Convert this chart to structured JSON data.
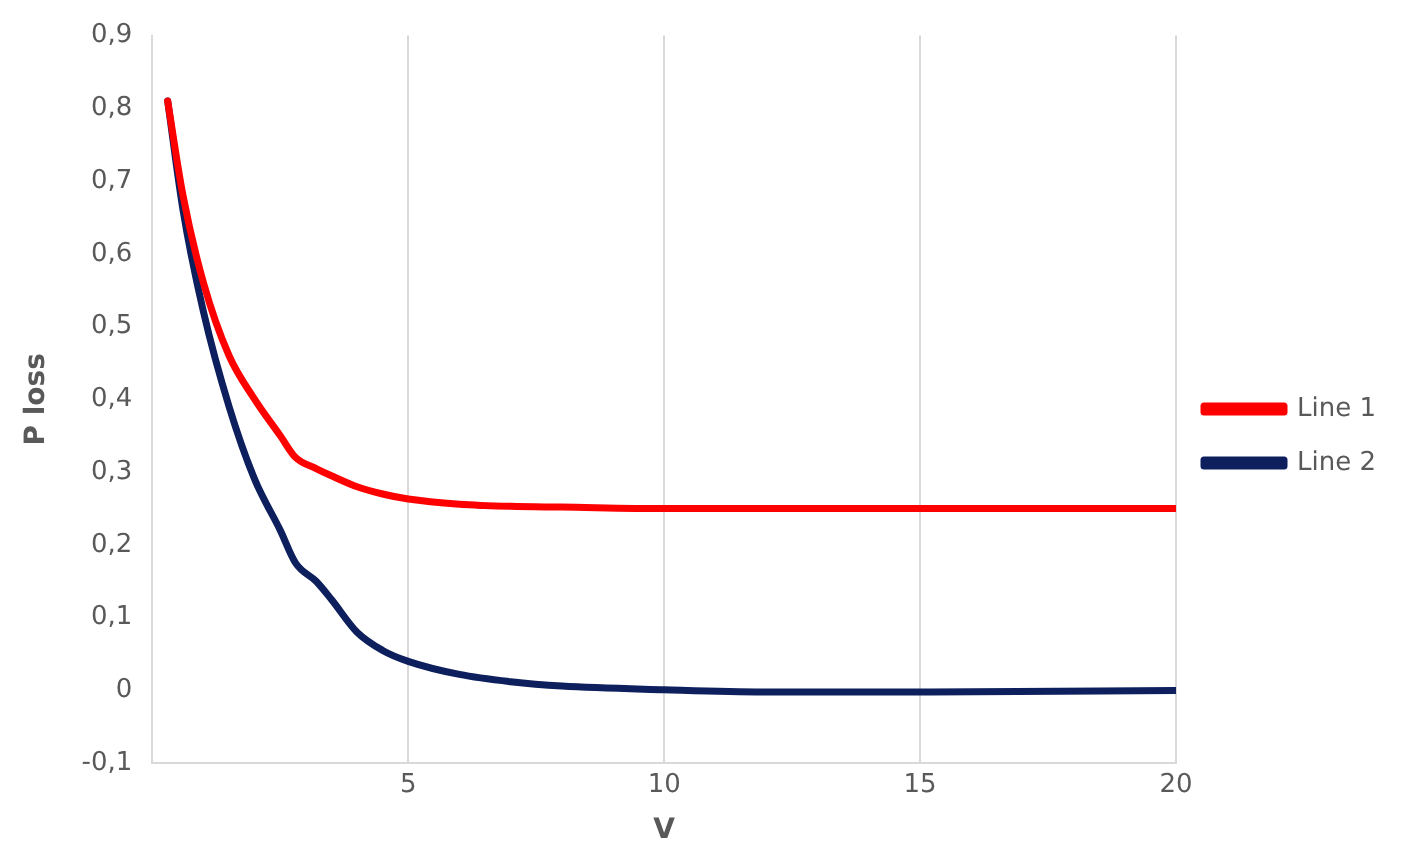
{
  "chart_data": {
    "type": "line",
    "xlabel": "V",
    "ylabel": "P loss",
    "x": [
      0.3,
      0.6,
      1,
      1.5,
      2,
      2.5,
      2.8,
      3.2,
      3.5,
      4,
      4.5,
      5,
      6,
      7,
      8,
      10,
      12,
      15,
      20
    ],
    "series": [
      {
        "name": "Line 1",
        "color": "#ff0000",
        "values": [
          0.81,
          0.68,
          0.56,
          0.46,
          0.4,
          0.35,
          0.32,
          0.305,
          0.295,
          0.28,
          0.27,
          0.263,
          0.256,
          0.253,
          0.252,
          0.25,
          0.25,
          0.25,
          0.25
        ]
      },
      {
        "name": "Line 2",
        "color": "#0d1f5c",
        "values": [
          0.81,
          0.66,
          0.52,
          0.39,
          0.29,
          0.22,
          0.175,
          0.15,
          0.125,
          0.08,
          0.055,
          0.04,
          0.022,
          0.012,
          0.006,
          0.001,
          -0.002,
          -0.002,
          0
        ]
      }
    ],
    "xlim": [
      0,
      20
    ],
    "xticks": [
      {
        "value": 0,
        "label": null
      },
      5,
      10,
      15,
      20
    ],
    "ylim": [
      -0.1,
      0.9
    ],
    "yticks": [
      {
        "value": -0.1,
        "label": "-0,1"
      },
      0,
      {
        "value": 0.1,
        "label": "0,1"
      },
      {
        "value": 0.2,
        "label": "0,2"
      },
      {
        "value": 0.3,
        "label": "0,3"
      },
      {
        "value": 0.4,
        "label": "0,4"
      },
      {
        "value": 0.5,
        "label": "0,5"
      },
      {
        "value": 0.6,
        "label": "0,6"
      },
      {
        "value": 0.7,
        "label": "0,7"
      },
      {
        "value": 0.8,
        "label": "0,8"
      },
      {
        "value": 0.9,
        "label": "0,9"
      }
    ],
    "grid": "x",
    "legend": "right",
    "marker": "none",
    "line_style": "solid"
  }
}
